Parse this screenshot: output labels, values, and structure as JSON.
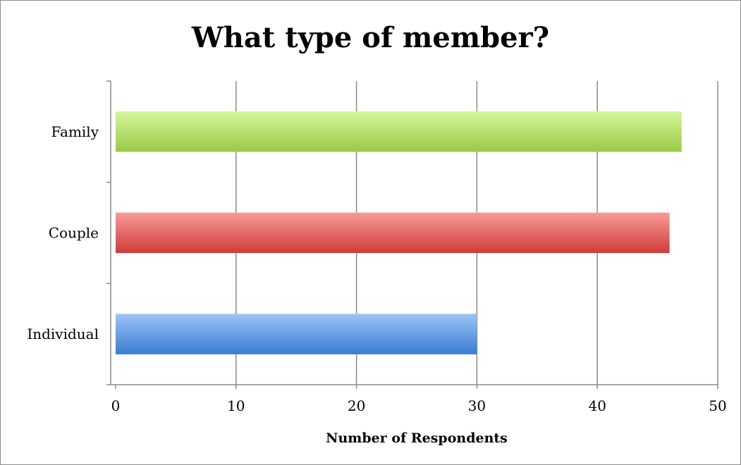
{
  "chart_data": {
    "type": "bar",
    "orientation": "horizontal",
    "title": "What type of member?",
    "xlabel": "Number of Respondents",
    "ylabel": "",
    "categories": [
      "Individual",
      "Couple",
      "Family"
    ],
    "values": [
      30,
      46,
      47
    ],
    "xlim": [
      0,
      50
    ],
    "xticks": [
      "0",
      "10",
      "20",
      "30",
      "40",
      "50"
    ],
    "grid": "vertical",
    "legend": "none",
    "colors": [
      "#5b9bd5",
      "#d9534f",
      "#9bcc50"
    ]
  }
}
